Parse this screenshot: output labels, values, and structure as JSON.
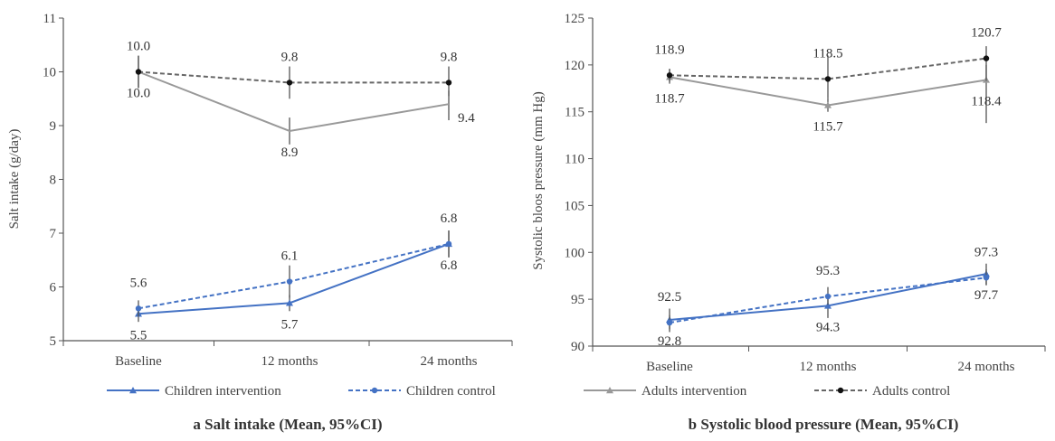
{
  "chart_data": [
    {
      "type": "line",
      "caption": "a Salt intake (Mean, 95%CI)",
      "ylabel": "Salt intake (g/day)",
      "categories": [
        "Baseline",
        "12 months",
        "24 months"
      ],
      "ylim": [
        5,
        11
      ],
      "yticks": [
        "5",
        "6",
        "7",
        "8",
        "9",
        "10",
        "11"
      ],
      "series": [
        {
          "name": "Children intervention",
          "values": [
            5.5,
            5.7,
            6.8
          ],
          "labels": [
            "5.5",
            "5.7",
            "6.8"
          ],
          "label_pos": [
            "below",
            "below",
            "below"
          ],
          "ci": [
            [
              5.35,
              5.65
            ],
            [
              5.55,
              5.85
            ],
            [
              6.55,
              7.05
            ]
          ],
          "color": "#4472c4",
          "dash": "solid",
          "marker": "triangle"
        },
        {
          "name": "Children control",
          "values": [
            5.6,
            6.1,
            6.8
          ],
          "labels": [
            "5.6",
            "6.1",
            "6.8"
          ],
          "label_pos": [
            "above",
            "above",
            "above"
          ],
          "ci": [
            [
              5.45,
              5.75
            ],
            [
              5.8,
              6.4
            ],
            [
              6.55,
              7.05
            ]
          ],
          "color": "#4472c4",
          "dash": "dashed",
          "marker": "circle"
        },
        {
          "name": "",
          "values": [
            10.0,
            8.9,
            9.4
          ],
          "labels": [
            "10.0",
            "8.9",
            "9.4"
          ],
          "label_pos": [
            "below",
            "below",
            "right"
          ],
          "ci": [
            [
              9.7,
              10.3
            ],
            [
              8.65,
              9.15
            ],
            [
              9.1,
              9.65
            ]
          ],
          "color": "#999999",
          "dash": "solid",
          "marker": "none"
        },
        {
          "name": "",
          "values": [
            10.0,
            9.8,
            9.8
          ],
          "labels": [
            "10.0",
            "9.8",
            "9.8"
          ],
          "label_pos": [
            "above",
            "above",
            "above"
          ],
          "ci": [
            [
              9.7,
              10.3
            ],
            [
              9.5,
              10.1
            ],
            [
              9.55,
              10.1
            ]
          ],
          "color": "#666666",
          "dash": "dashed",
          "marker": "circle-black"
        }
      ]
    },
    {
      "type": "line",
      "caption": "b Systolic blood pressure (Mean, 95%CI)",
      "ylabel": "Systolic bloos pressure (mm Hg)",
      "categories": [
        "Baseline",
        "12 months",
        "24 months"
      ],
      "ylim": [
        90,
        125
      ],
      "yticks": [
        "90",
        "95",
        "100",
        "105",
        "110",
        "115",
        "120",
        "125"
      ],
      "series": [
        {
          "name": "Adults intervention",
          "values": [
            118.7,
            115.7,
            118.4
          ],
          "labels": [
            "118.7",
            "115.7",
            "118.4"
          ],
          "label_pos": [
            "below",
            "below",
            "below"
          ],
          "ci": [
            [
              118.0,
              119.5
            ],
            [
              115.0,
              116.5
            ],
            [
              113.8,
              120.0
            ]
          ],
          "color": "#999999",
          "dash": "solid",
          "marker": "triangle-grey"
        },
        {
          "name": "Adults control",
          "values": [
            118.9,
            118.5,
            120.7
          ],
          "labels": [
            "118.9",
            "118.5",
            "120.7"
          ],
          "label_pos": [
            "above",
            "above",
            "above"
          ],
          "ci": [
            [
              118.2,
              119.6
            ],
            [
              116.5,
              121.0
            ],
            [
              118.3,
              122.0
            ]
          ],
          "color": "#666666",
          "dash": "dashed",
          "marker": "circle-black"
        },
        {
          "name": "",
          "values": [
            92.8,
            94.3,
            97.7
          ],
          "labels": [
            "92.8",
            "94.3",
            "97.7"
          ],
          "label_pos": [
            "below",
            "below",
            "below"
          ],
          "ci": [
            [
              91.5,
              94.0
            ],
            [
              93.0,
              95.5
            ],
            [
              96.5,
              98.8
            ]
          ],
          "color": "#4472c4",
          "dash": "solid",
          "marker": "triangle"
        },
        {
          "name": "",
          "values": [
            92.5,
            95.3,
            97.3
          ],
          "labels": [
            "92.5",
            "95.3",
            "97.3"
          ],
          "label_pos": [
            "above",
            "above",
            "above"
          ],
          "ci": [
            [
              91.8,
              93.3
            ],
            [
              94.4,
              96.3
            ],
            [
              96.5,
              98.2
            ]
          ],
          "color": "#4472c4",
          "dash": "dashed",
          "marker": "circle"
        }
      ]
    }
  ]
}
